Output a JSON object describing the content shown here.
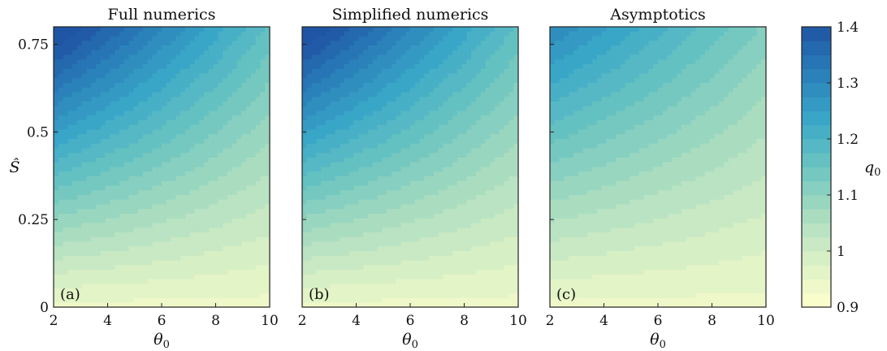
{
  "chart_data": {
    "type": "heatmap",
    "panels": [
      {
        "title": "Full numerics",
        "tag": "(a)",
        "xlabel": "θ",
        "xlabel_sub": "0",
        "ylabel": "Ŝ",
        "model": {
          "base": 0.94,
          "a": 0.36,
          "b": 0.14
        }
      },
      {
        "title": "Simplified numerics",
        "tag": "(b)",
        "xlabel": "θ",
        "xlabel_sub": "0",
        "ylabel": "",
        "model": {
          "base": 0.94,
          "a": 0.36,
          "b": 0.14
        }
      },
      {
        "title": "Asymptotics",
        "tag": "(c)",
        "xlabel": "θ",
        "xlabel_sub": "0",
        "ylabel": "",
        "model": {
          "base": 0.94,
          "a": 0.24,
          "b": 0.12
        }
      }
    ],
    "xlim": [
      2,
      10
    ],
    "ylim": [
      0,
      0.8
    ],
    "x_ticks": [
      2,
      4,
      6,
      8,
      10
    ],
    "y_ticks": [
      0,
      0.25,
      0.5,
      0.75
    ],
    "y_tick_labels": [
      "0",
      "0.25",
      "0.5",
      "0.75"
    ],
    "colorbar": {
      "label": "q",
      "label_sub": "0",
      "range": [
        0.9,
        1.4
      ],
      "ticks": [
        0.9,
        1,
        1.1,
        1.2,
        1.3,
        1.4
      ],
      "tick_labels": [
        "0.9",
        "1",
        "1.1",
        "1.2",
        "1.3",
        "1.4"
      ],
      "level_step": 0.025
    },
    "colormap": [
      "#ffffcc",
      "#d9f0c5",
      "#a8dcc0",
      "#6cc5c0",
      "#3aa8c8",
      "#2a80b9",
      "#1f55a4"
    ],
    "grid": false
  }
}
